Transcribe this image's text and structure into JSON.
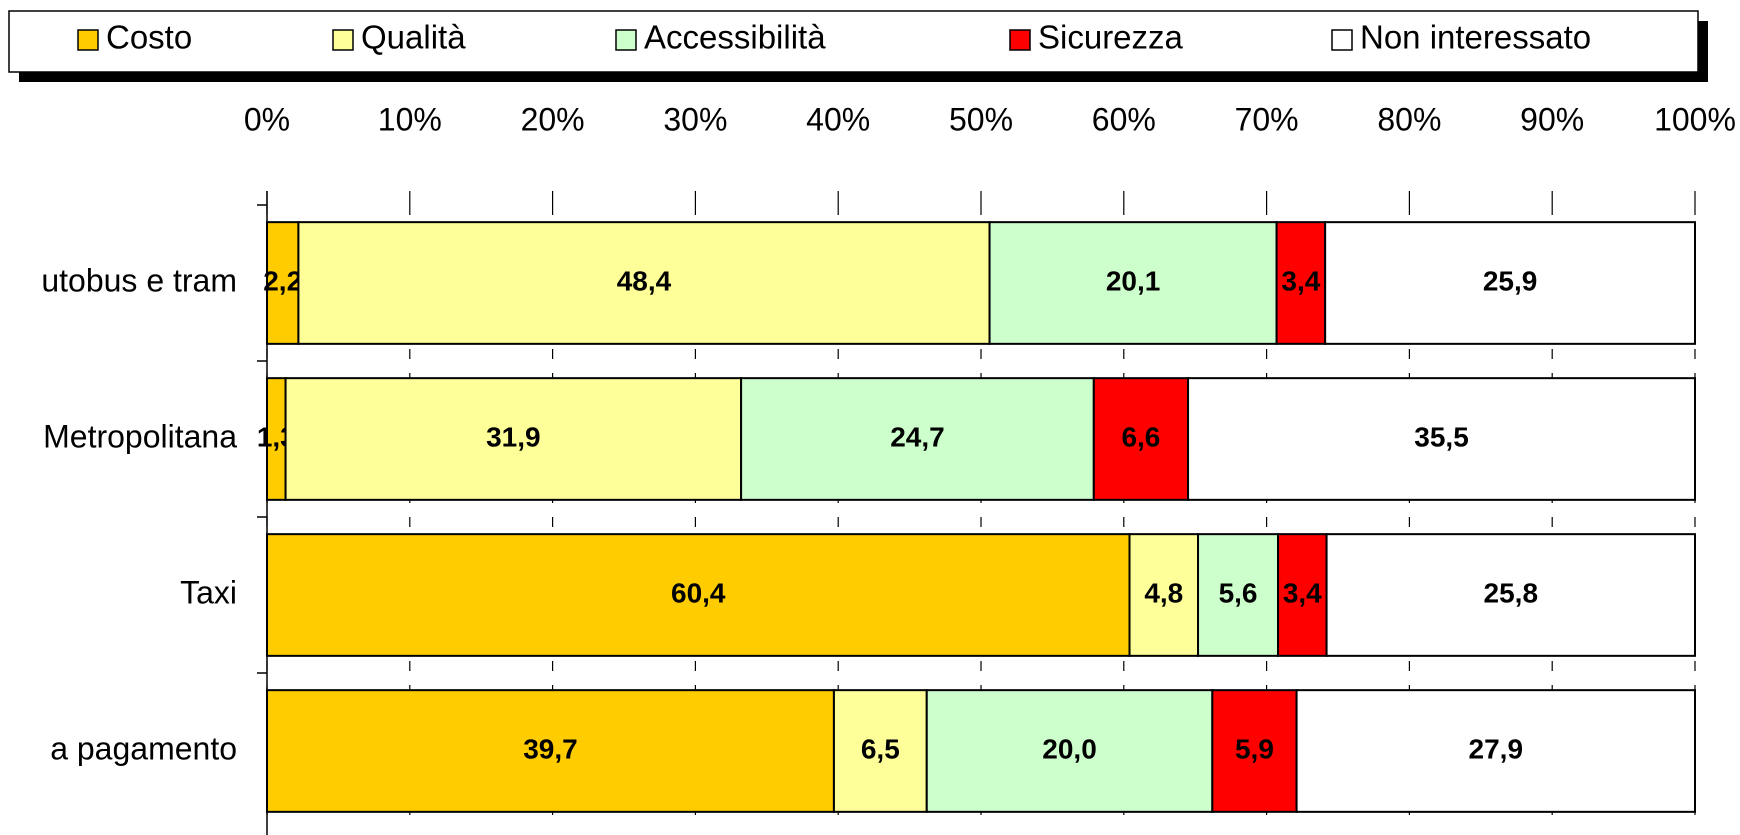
{
  "chart_data": {
    "type": "stacked_bar_horizontal",
    "categories": [
      "utobus e tram",
      "Metropolitana",
      "Taxi",
      "a pagamento"
    ],
    "series": [
      {
        "name": "Costo",
        "color": "#ffcc00",
        "values": [
          2.2,
          1.3,
          60.4,
          39.7
        ],
        "value_labels": [
          "2,2",
          "1,3",
          "60,4",
          "39,7"
        ]
      },
      {
        "name": "Qualità",
        "color": "#ffff99",
        "values": [
          48.4,
          31.9,
          4.8,
          6.5
        ],
        "value_labels": [
          "48,4",
          "31,9",
          "4,8",
          "6,5"
        ]
      },
      {
        "name": "Accessibilità",
        "color": "#ccffcc",
        "values": [
          20.1,
          24.7,
          5.6,
          20.0
        ],
        "value_labels": [
          "20,1",
          "24,7",
          "5,6",
          "20,0"
        ]
      },
      {
        "name": "Sicurezza",
        "color": "#ff0000",
        "values": [
          3.4,
          6.6,
          3.4,
          5.9
        ],
        "value_labels": [
          "3,4",
          "6,6",
          "3,4",
          "5,9"
        ]
      },
      {
        "name": "Non interessato",
        "color": "#ffffff",
        "values": [
          25.9,
          35.5,
          25.8,
          27.9
        ],
        "value_labels": [
          "25,9",
          "35,5",
          "25,8",
          "27,9"
        ]
      }
    ],
    "xlim": [
      0,
      100
    ],
    "xticks": [
      {
        "value": 0,
        "label": "0%"
      },
      {
        "value": 10,
        "label": "10%"
      },
      {
        "value": 20,
        "label": "20%"
      },
      {
        "value": 30,
        "label": "30%"
      },
      {
        "value": 40,
        "label": "40%"
      },
      {
        "value": 50,
        "label": "50%"
      },
      {
        "value": 60,
        "label": "60%"
      },
      {
        "value": 70,
        "label": "70%"
      },
      {
        "value": 80,
        "label": "80%"
      },
      {
        "value": 90,
        "label": "90%"
      },
      {
        "value": 100,
        "label": "100%"
      }
    ],
    "grid": true,
    "legend": "top"
  }
}
